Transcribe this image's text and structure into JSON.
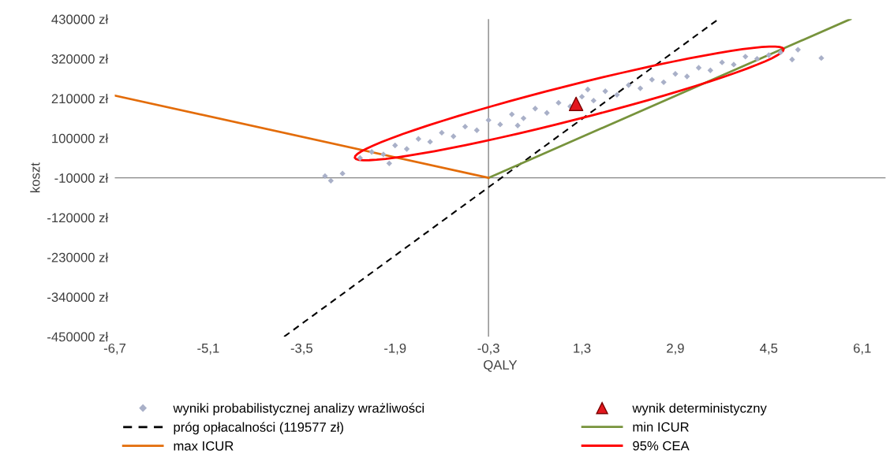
{
  "chart_data": {
    "type": "scatter",
    "xlabel": "QALY",
    "ylabel": "koszt",
    "legend": "bottom",
    "grid": false,
    "xlim": [
      -6.7,
      6.5
    ],
    "xticks": [
      {
        "value": -6.7,
        "label": "-6,7"
      },
      {
        "value": -5.1,
        "label": "-5,1"
      },
      {
        "value": -3.5,
        "label": "-3,5"
      },
      {
        "value": -1.9,
        "label": "-1,9"
      },
      {
        "value": -0.3,
        "label": "-0,3"
      },
      {
        "value": 1.3,
        "label": "1,3"
      },
      {
        "value": 2.9,
        "label": "2,9"
      },
      {
        "value": 4.5,
        "label": "4,5"
      },
      {
        "value": 6.1,
        "label": "6,1"
      }
    ],
    "ylim": [
      -450000,
      430000
    ],
    "yticks": [
      {
        "value": 430000,
        "label": "430000 zł"
      },
      {
        "value": 320000,
        "label": "320000 zł"
      },
      {
        "value": 210000,
        "label": "210000 zł"
      },
      {
        "value": 100000,
        "label": "100000 zł"
      },
      {
        "value": -10000,
        "label": "-10000 zł"
      },
      {
        "value": -120000,
        "label": "-120000 zł"
      },
      {
        "value": -230000,
        "label": "-230000 zł"
      },
      {
        "value": -340000,
        "label": "-340000 zł"
      },
      {
        "value": -450000,
        "label": "-450000 zł"
      }
    ],
    "ref_lines": [
      {
        "axis": "x",
        "value": -0.3,
        "color": "#868686"
      },
      {
        "axis": "y",
        "value": -10000,
        "color": "#868686"
      }
    ],
    "series": [
      {
        "name": "wyniki probabilistycznej analizy wrażliwości",
        "marker": "diamond",
        "color": "#a9b0c8",
        "x": [
          -2.5,
          -2.3,
          -2.1,
          -1.9,
          -1.7,
          -1.5,
          -1.3,
          -1.1,
          -0.9,
          -0.7,
          -0.5,
          -0.3,
          -0.1,
          0.1,
          0.3,
          0.5,
          0.7,
          0.9,
          1.1,
          1.3,
          1.5,
          1.7,
          1.9,
          2.1,
          2.3,
          2.5,
          2.7,
          2.9,
          3.1,
          3.3,
          3.5,
          3.7,
          3.9,
          4.1,
          4.3,
          4.5,
          4.7,
          -3.1,
          -3.0,
          -2.8,
          -2.0,
          5.0,
          5.4,
          4.9,
          0.2,
          1.4
        ],
        "values": [
          45000,
          62000,
          55000,
          80000,
          70000,
          98000,
          90000,
          115000,
          105000,
          132000,
          122000,
          150000,
          138000,
          166000,
          155000,
          182000,
          170000,
          198000,
          188000,
          215000,
          204000,
          230000,
          220000,
          247000,
          238000,
          262000,
          255000,
          278000,
          271000,
          295000,
          288000,
          310000,
          304000,
          326000,
          320000,
          330000,
          338000,
          -5000,
          -18000,
          2000,
          30000,
          345000,
          322000,
          318000,
          135000,
          235000
        ]
      },
      {
        "name": "wynik deterministyczny",
        "marker": "triangle",
        "color": "#e3171e",
        "x": [
          1.2
        ],
        "values": [
          195000
        ]
      },
      {
        "name": "próg opłacalności (119577 zł)",
        "type": "line",
        "line_style": "dashed",
        "color": "#000000",
        "x": [
          -3.8,
          3.64
        ],
        "values": [
          -450000,
          430000
        ]
      },
      {
        "name": "min ICUR",
        "type": "line",
        "line_style": "solid",
        "color": "#77933c",
        "x": [
          -0.3,
          5.9
        ],
        "values": [
          -10000,
          430000
        ]
      },
      {
        "name": "max ICUR",
        "type": "line",
        "line_style": "solid",
        "color": "#e36c09",
        "x": [
          -6.7,
          -0.3
        ],
        "values": [
          218000,
          -10000
        ]
      }
    ],
    "annotations": [
      "95% CEA"
    ]
  }
}
